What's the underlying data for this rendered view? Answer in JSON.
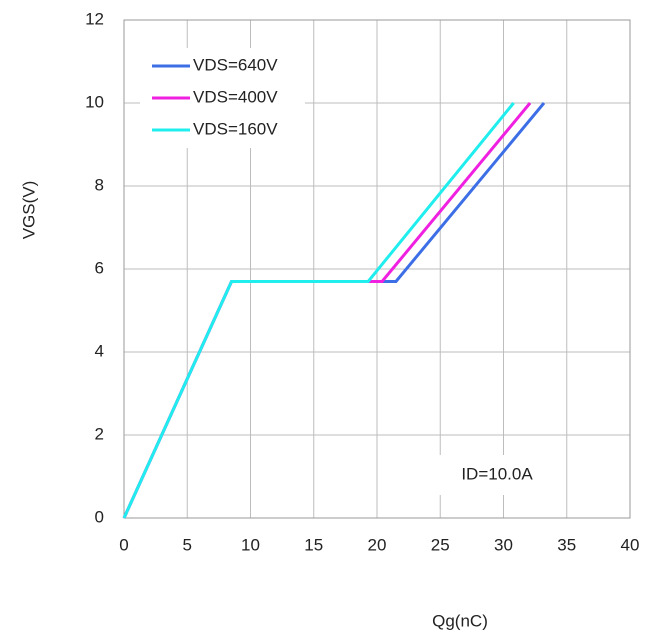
{
  "chart_data": {
    "type": "line",
    "x_label": "Qg(nC)",
    "y_label": "VGS(V)",
    "xlim": [
      0,
      40
    ],
    "xticks": [
      0,
      5,
      10,
      15,
      20,
      25,
      30,
      35,
      40
    ],
    "ylim": [
      0,
      12
    ],
    "yticks": [
      0,
      2,
      4,
      6,
      8,
      10,
      12
    ],
    "grid": true,
    "legend": "upper left",
    "annotation": "ID=10.0A",
    "series": [
      {
        "name": "VDS=640V",
        "color": "#3c6ee6",
        "x": [
          0,
          8.5,
          21.5,
          33.2
        ],
        "values": [
          0,
          5.7,
          5.7,
          10
        ]
      },
      {
        "name": "VDS=400V",
        "color": "#f020e0",
        "x": [
          0,
          8.5,
          20.4,
          32.1
        ],
        "values": [
          0,
          5.7,
          5.7,
          10
        ]
      },
      {
        "name": "VDS=160V",
        "color": "#20eeee",
        "x": [
          0,
          8.5,
          19.3,
          30.8
        ],
        "values": [
          0,
          5.7,
          5.7,
          10
        ]
      }
    ]
  }
}
